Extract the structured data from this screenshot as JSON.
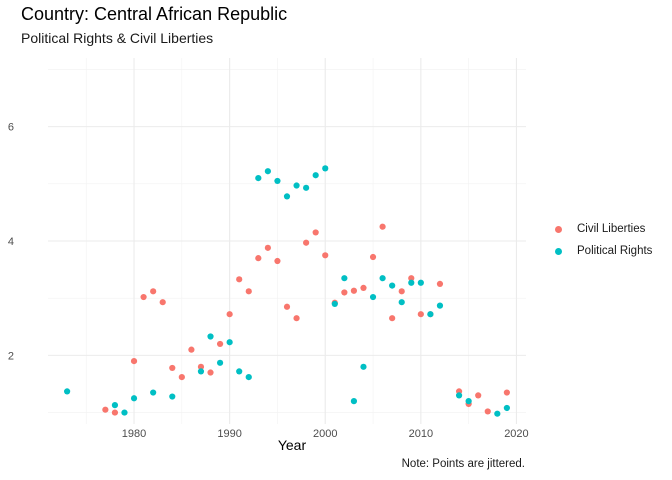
{
  "title": "Country: Central African Republic",
  "subtitle": "Political Rights & Civil Liberties",
  "caption": "Note: Points are jittered.",
  "chart_data": {
    "type": "scatter",
    "xlabel": "Year",
    "ylabel": "",
    "xlim": [
      1971,
      2021
    ],
    "ylim": [
      0.8,
      7.2
    ],
    "x_ticks": [
      1980,
      1990,
      2000,
      2010,
      2020
    ],
    "y_ticks": [
      2,
      4,
      6
    ],
    "grid": true,
    "legend_position": "right",
    "series": [
      {
        "name": "Civil Liberties",
        "color": "#F8766D",
        "points": [
          [
            1977,
            1.05
          ],
          [
            1978,
            1.0
          ],
          [
            1980,
            1.9
          ],
          [
            1981,
            3.02
          ],
          [
            1982,
            3.12
          ],
          [
            1983,
            2.93
          ],
          [
            1984,
            1.78
          ],
          [
            1985,
            1.62
          ],
          [
            1986,
            2.1
          ],
          [
            1987,
            1.8
          ],
          [
            1988,
            1.7
          ],
          [
            1989,
            2.2
          ],
          [
            1990,
            2.72
          ],
          [
            1991,
            3.33
          ],
          [
            1992,
            3.12
          ],
          [
            1993,
            3.7
          ],
          [
            1994,
            3.88
          ],
          [
            1995,
            3.65
          ],
          [
            1996,
            2.85
          ],
          [
            1997,
            2.65
          ],
          [
            1998,
            3.97
          ],
          [
            1999,
            4.15
          ],
          [
            2000,
            3.75
          ],
          [
            2001,
            2.92
          ],
          [
            2002,
            3.1
          ],
          [
            2003,
            3.13
          ],
          [
            2004,
            3.18
          ],
          [
            2005,
            3.72
          ],
          [
            2006,
            4.25
          ],
          [
            2007,
            2.65
          ],
          [
            2008,
            3.12
          ],
          [
            2009,
            3.35
          ],
          [
            2010,
            2.72
          ],
          [
            2011,
            2.72
          ],
          [
            2012,
            3.25
          ],
          [
            2014,
            1.37
          ],
          [
            2015,
            1.15
          ],
          [
            2016,
            1.3
          ],
          [
            2017,
            1.02
          ],
          [
            2019,
            1.35
          ]
        ]
      },
      {
        "name": "Political Rights",
        "color": "#00BFC4",
        "points": [
          [
            1973,
            1.37
          ],
          [
            1978,
            1.13
          ],
          [
            1979,
            1.0
          ],
          [
            1980,
            1.25
          ],
          [
            1982,
            1.35
          ],
          [
            1984,
            1.28
          ],
          [
            1987,
            1.72
          ],
          [
            1988,
            2.33
          ],
          [
            1989,
            1.87
          ],
          [
            1990,
            2.23
          ],
          [
            1991,
            1.72
          ],
          [
            1992,
            1.62
          ],
          [
            1993,
            5.1
          ],
          [
            1994,
            5.22
          ],
          [
            1995,
            5.05
          ],
          [
            1996,
            4.78
          ],
          [
            1997,
            4.97
          ],
          [
            1998,
            4.93
          ],
          [
            1999,
            5.15
          ],
          [
            2000,
            5.27
          ],
          [
            2001,
            2.9
          ],
          [
            2002,
            3.35
          ],
          [
            2003,
            1.2
          ],
          [
            2004,
            1.8
          ],
          [
            2005,
            3.02
          ],
          [
            2006,
            3.35
          ],
          [
            2007,
            3.22
          ],
          [
            2008,
            2.93
          ],
          [
            2009,
            3.27
          ],
          [
            2010,
            3.27
          ],
          [
            2011,
            2.72
          ],
          [
            2012,
            2.87
          ],
          [
            2014,
            1.3
          ],
          [
            2015,
            1.2
          ],
          [
            2018,
            0.98
          ],
          [
            2019,
            1.08
          ]
        ]
      }
    ]
  }
}
